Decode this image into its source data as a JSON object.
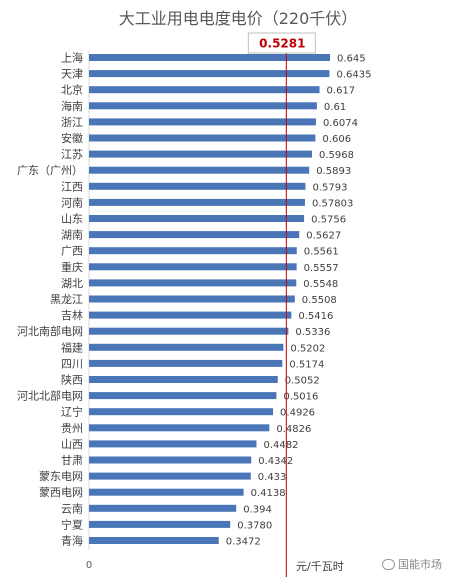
{
  "chart_data": {
    "type": "bar",
    "orientation": "horizontal",
    "title": "大工业用电电度电价（220千伏）",
    "categories": [
      "上海",
      "天津",
      "北京",
      "海南",
      "浙江",
      "安徽",
      "江苏",
      "广东（广州）",
      "江西",
      "河南",
      "山东",
      "湖南",
      "广西",
      "重庆",
      "湖北",
      "黑龙江",
      "吉林",
      "河北南部电网",
      "福建",
      "四川",
      "陕西",
      "河北北部电网",
      "辽宁",
      "贵州",
      "山西",
      "甘肃",
      "蒙东电网",
      "蒙西电网",
      "云南",
      "宁夏",
      "青海"
    ],
    "values": [
      0.645,
      0.6435,
      0.617,
      0.61,
      0.6074,
      0.606,
      0.5968,
      0.5893,
      0.5793,
      0.57803,
      0.5756,
      0.5627,
      0.5561,
      0.5557,
      0.5548,
      0.5508,
      0.5416,
      0.5336,
      0.5202,
      0.5174,
      0.5052,
      0.5016,
      0.4926,
      0.4826,
      0.4482,
      0.4342,
      0.433,
      0.4138,
      0.394,
      0.378,
      0.3472
    ],
    "value_labels": [
      "0.645",
      "0.6435",
      "0.617",
      "0.61",
      "0.6074",
      "0.606",
      "0.5968",
      "0.5893",
      "0.5793",
      "0.57803",
      "0.5756",
      "0.5627",
      "0.5561",
      "0.5557",
      "0.5548",
      "0.5508",
      "0.5416",
      "0.5336",
      "0.5202",
      "0.5174",
      "0.5052",
      "0.5016",
      "0.4926",
      "0.4826",
      "0.4482",
      "0.4342",
      "0.433",
      "0.4138",
      "0.394",
      "0.3780",
      "0.3472"
    ],
    "reference_line": {
      "value": 0.5281,
      "label": "0.5281",
      "color": "#c00000"
    },
    "x_tick_labels": [
      "0"
    ],
    "xlabel": "元/千瓦时",
    "xlim": [
      0,
      0.7
    ],
    "bar_color": "#4a76b8",
    "grid": false,
    "legend": "none"
  },
  "watermark": {
    "text": "国能市场"
  }
}
